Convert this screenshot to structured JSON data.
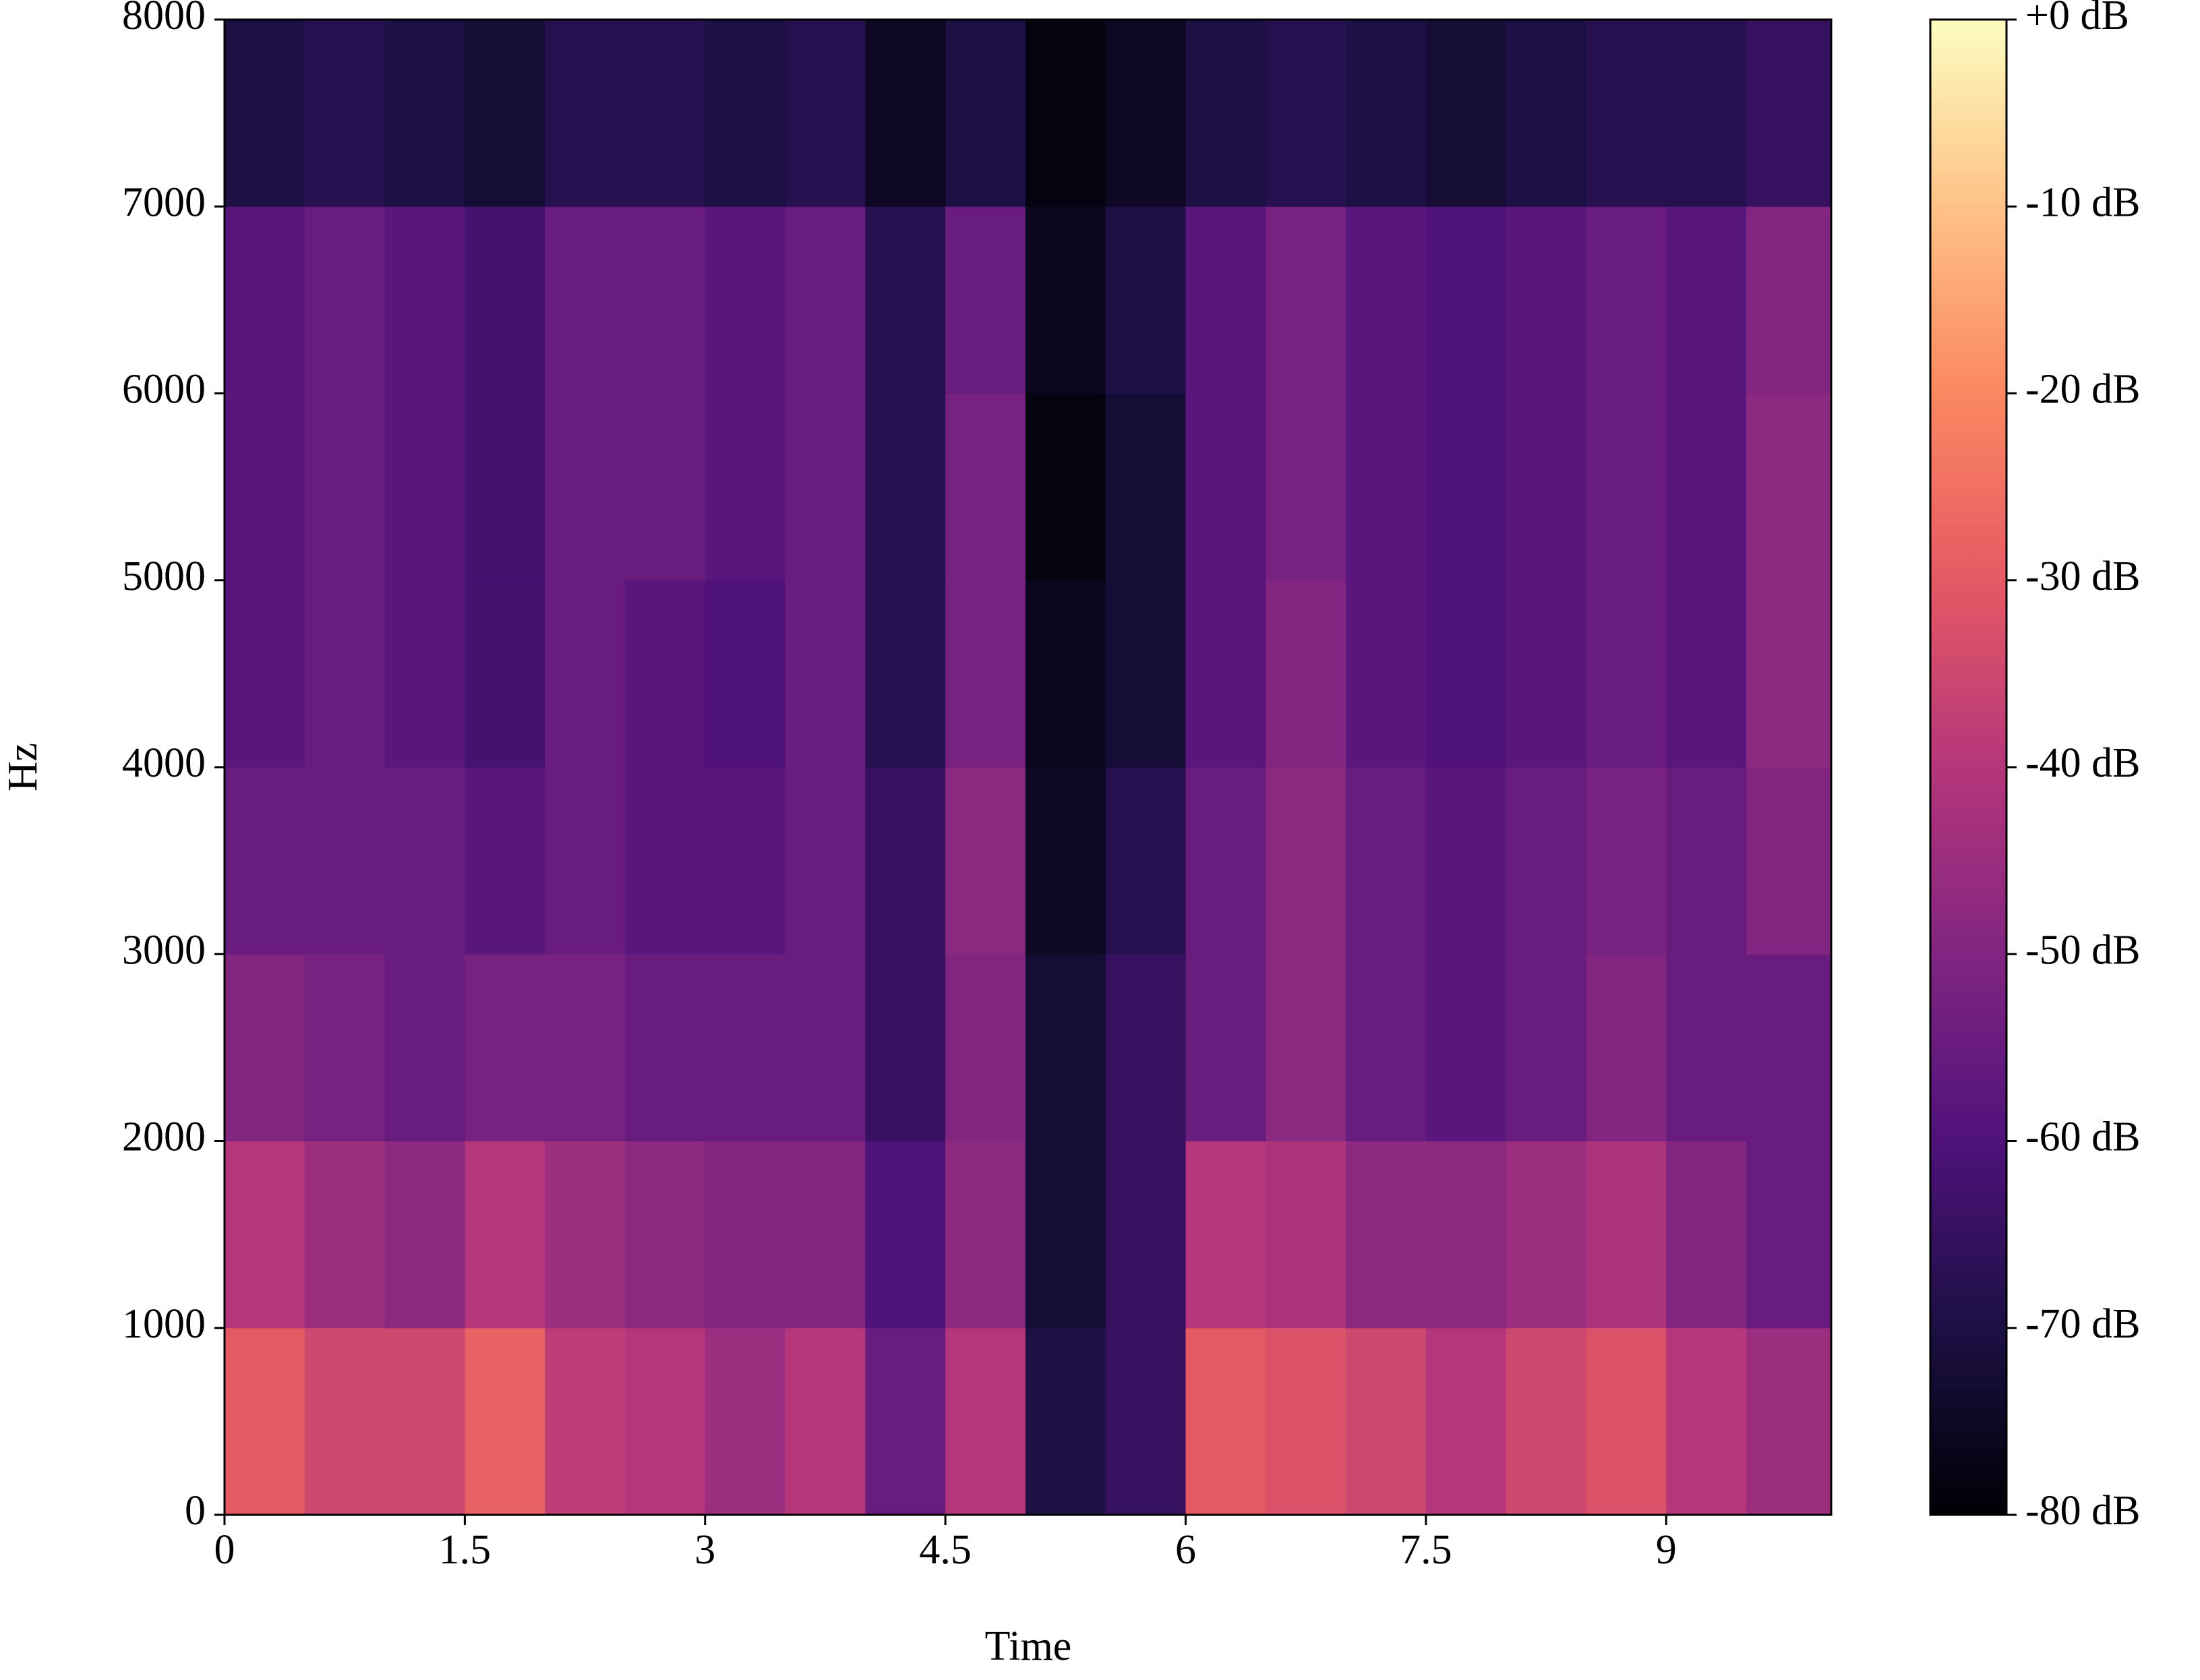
{
  "chart_data": {
    "type": "heatmap",
    "x_label": "Time",
    "y_label": "Hz",
    "colormap": "magma",
    "x_bins": [
      0,
      0.5,
      1,
      1.5,
      2,
      2.5,
      3,
      3.5,
      4,
      4.5,
      5,
      5.5,
      6,
      6.5,
      7,
      7.5,
      8,
      8.5,
      9,
      9.5,
      10.03
    ],
    "y_bins": [
      0,
      1000,
      2000,
      3000,
      4000,
      5000,
      6000,
      7000,
      8000
    ],
    "values": [
      [
        -30,
        -35,
        -35,
        -28,
        -38,
        -40,
        -45,
        -40,
        -55,
        -40,
        -70,
        -65,
        -30,
        -32,
        -35,
        -40,
        -35,
        -32,
        -40,
        -45
      ],
      [
        -40,
        -45,
        -48,
        -40,
        -45,
        -48,
        -50,
        -50,
        -60,
        -48,
        -72,
        -65,
        -40,
        -42,
        -48,
        -48,
        -45,
        -42,
        -50,
        -55
      ],
      [
        -50,
        -52,
        -55,
        -52,
        -52,
        -55,
        -55,
        -55,
        -65,
        -50,
        -72,
        -65,
        -55,
        -48,
        -55,
        -58,
        -55,
        -50,
        -55,
        -55
      ],
      [
        -55,
        -55,
        -55,
        -58,
        -55,
        -58,
        -58,
        -55,
        -65,
        -48,
        -75,
        -68,
        -55,
        -48,
        -55,
        -58,
        -55,
        -52,
        -55,
        -50
      ],
      [
        -58,
        -55,
        -58,
        -62,
        -55,
        -58,
        -60,
        -55,
        -68,
        -52,
        -76,
        -72,
        -58,
        -50,
        -58,
        -60,
        -58,
        -55,
        -58,
        -48
      ],
      [
        -58,
        -55,
        -58,
        -62,
        -55,
        -55,
        -58,
        -55,
        -68,
        -52,
        -78,
        -72,
        -58,
        -52,
        -58,
        -60,
        -58,
        -55,
        -58,
        -48
      ],
      [
        -58,
        -55,
        -58,
        -62,
        -55,
        -55,
        -58,
        -55,
        -68,
        -55,
        -76,
        -70,
        -58,
        -52,
        -58,
        -60,
        -58,
        -55,
        -58,
        -50
      ],
      [
        -70,
        -68,
        -70,
        -72,
        -68,
        -68,
        -70,
        -68,
        -75,
        -70,
        -78,
        -75,
        -70,
        -68,
        -70,
        -72,
        -70,
        -68,
        -68,
        -65
      ]
    ],
    "xlim": [
      0,
      10.03
    ],
    "ylim": [
      0,
      8000
    ],
    "xticks": [
      0,
      1.5,
      3,
      4.5,
      6,
      7.5,
      9
    ],
    "yticks": [
      0,
      1000,
      2000,
      3000,
      4000,
      5000,
      6000,
      7000,
      8000
    ],
    "clim": [
      -80,
      0
    ],
    "cticks": [
      {
        "value": 0,
        "label": "+0 dB"
      },
      {
        "value": -10,
        "label": "-10 dB"
      },
      {
        "value": -20,
        "label": "-20 dB"
      },
      {
        "value": -30,
        "label": "-30 dB"
      },
      {
        "value": -40,
        "label": "-40 dB"
      },
      {
        "value": -50,
        "label": "-50 dB"
      },
      {
        "value": -60,
        "label": "-60 dB"
      },
      {
        "value": -70,
        "label": "-70 dB"
      },
      {
        "value": -80,
        "label": "-80 dB"
      }
    ]
  }
}
